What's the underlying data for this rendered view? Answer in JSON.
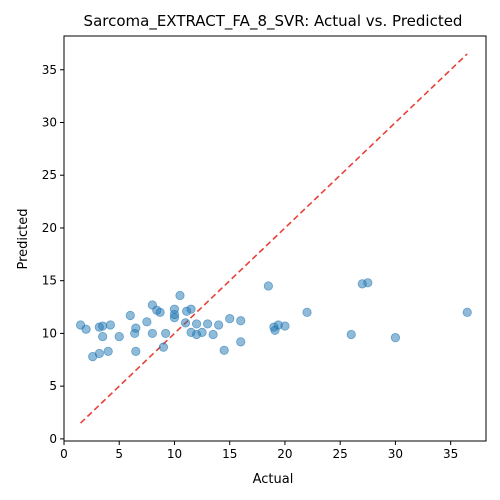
{
  "chart_data": {
    "type": "scatter",
    "title": "Sarcoma_EXTRACT_FA_8_SVR: Actual vs. Predicted",
    "xlabel": "Actual",
    "ylabel": "Predicted",
    "xlim": [
      0,
      38.2
    ],
    "ylim": [
      -0.2,
      38.2
    ],
    "xticks": [
      0,
      5,
      10,
      15,
      20,
      25,
      30,
      35
    ],
    "yticks": [
      0,
      5,
      10,
      15,
      20,
      25,
      30,
      35
    ],
    "grid": false,
    "point_color": "#1f77b4",
    "reference_line": {
      "from": [
        1.5,
        1.5
      ],
      "to": [
        36.5,
        36.5
      ],
      "color": "#e8413a",
      "style": "dashed"
    },
    "points": [
      {
        "x": 1.5,
        "y": 10.8
      },
      {
        "x": 2.0,
        "y": 10.4
      },
      {
        "x": 2.6,
        "y": 7.8
      },
      {
        "x": 3.2,
        "y": 10.6
      },
      {
        "x": 3.2,
        "y": 8.1
      },
      {
        "x": 3.5,
        "y": 10.7
      },
      {
        "x": 3.5,
        "y": 9.7
      },
      {
        "x": 4.0,
        "y": 8.3
      },
      {
        "x": 4.2,
        "y": 10.8
      },
      {
        "x": 5.0,
        "y": 9.7
      },
      {
        "x": 6.0,
        "y": 11.7
      },
      {
        "x": 6.4,
        "y": 10.0
      },
      {
        "x": 6.5,
        "y": 10.5
      },
      {
        "x": 6.5,
        "y": 8.3
      },
      {
        "x": 7.5,
        "y": 11.1
      },
      {
        "x": 8.0,
        "y": 12.7
      },
      {
        "x": 8.0,
        "y": 10.0
      },
      {
        "x": 8.4,
        "y": 12.2
      },
      {
        "x": 8.7,
        "y": 12.0
      },
      {
        "x": 9.0,
        "y": 8.7
      },
      {
        "x": 9.2,
        "y": 10.0
      },
      {
        "x": 10.0,
        "y": 12.3
      },
      {
        "x": 10.0,
        "y": 11.8
      },
      {
        "x": 10.0,
        "y": 11.5
      },
      {
        "x": 10.5,
        "y": 13.6
      },
      {
        "x": 11.0,
        "y": 11.0
      },
      {
        "x": 11.1,
        "y": 12.1
      },
      {
        "x": 11.5,
        "y": 12.3
      },
      {
        "x": 11.5,
        "y": 10.1
      },
      {
        "x": 12.0,
        "y": 10.9
      },
      {
        "x": 12.0,
        "y": 9.9
      },
      {
        "x": 12.5,
        "y": 10.1
      },
      {
        "x": 13.0,
        "y": 10.9
      },
      {
        "x": 13.5,
        "y": 9.9
      },
      {
        "x": 14.0,
        "y": 10.8
      },
      {
        "x": 14.5,
        "y": 8.4
      },
      {
        "x": 15.0,
        "y": 11.4
      },
      {
        "x": 16.0,
        "y": 11.2
      },
      {
        "x": 16.0,
        "y": 9.2
      },
      {
        "x": 18.5,
        "y": 14.5
      },
      {
        "x": 19.0,
        "y": 10.6
      },
      {
        "x": 19.1,
        "y": 10.3
      },
      {
        "x": 19.4,
        "y": 10.8
      },
      {
        "x": 20.0,
        "y": 10.7
      },
      {
        "x": 22.0,
        "y": 12.0
      },
      {
        "x": 26.0,
        "y": 9.9
      },
      {
        "x": 27.0,
        "y": 14.7
      },
      {
        "x": 27.5,
        "y": 14.8
      },
      {
        "x": 30.0,
        "y": 9.6
      },
      {
        "x": 36.5,
        "y": 12.0
      }
    ]
  }
}
